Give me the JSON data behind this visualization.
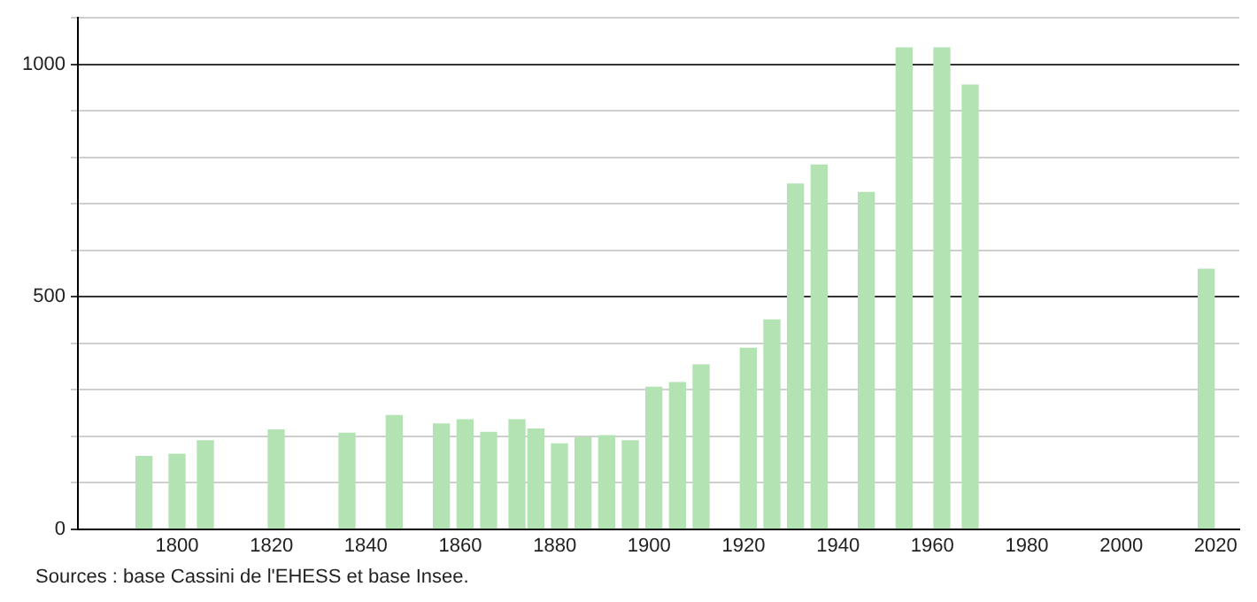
{
  "chart_data": {
    "type": "bar",
    "x": [
      1793,
      1800,
      1806,
      1821,
      1836,
      1846,
      1856,
      1861,
      1866,
      1872,
      1876,
      1881,
      1886,
      1891,
      1896,
      1901,
      1906,
      1911,
      1921,
      1926,
      1931,
      1936,
      1946,
      1954,
      1962,
      1968,
      2018
    ],
    "values": [
      156,
      161,
      190,
      213,
      206,
      244,
      226,
      235,
      208,
      235,
      215,
      183,
      197,
      201,
      190,
      305,
      315,
      353,
      389,
      450,
      742,
      783,
      724,
      1035,
      1035,
      955,
      559
    ],
    "color": "#b3e2b3",
    "xlim": [
      1779,
      2025
    ],
    "xticks": [
      1800,
      1820,
      1840,
      1860,
      1880,
      1900,
      1920,
      1940,
      1960,
      1980,
      2000,
      2020
    ],
    "ylim": [
      0,
      1100
    ],
    "yticks": [
      0,
      {
        "value": 100,
        "label": null
      },
      {
        "value": 200,
        "label": null
      },
      {
        "value": 300,
        "label": null
      },
      {
        "value": 400,
        "label": null
      },
      500,
      {
        "value": 600,
        "label": null
      },
      {
        "value": 700,
        "label": null
      },
      {
        "value": 800,
        "label": null
      },
      {
        "value": 900,
        "label": null
      },
      1000,
      {
        "value": 1100,
        "label": null
      }
    ],
    "grid": "y",
    "annotations": [
      "Sources : base Cassini de l'EHESS et base Insee."
    ]
  }
}
